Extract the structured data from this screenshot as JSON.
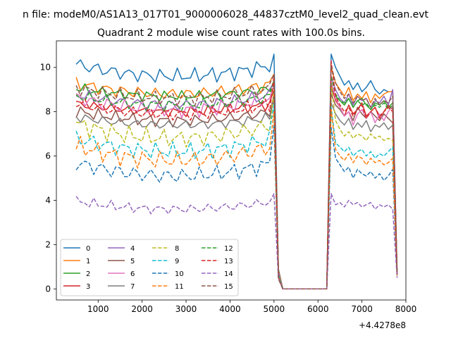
{
  "figure": {
    "suptitle": "n file: modeM0/AS1A13_017T01_9000006028_44837cztM0_level2_quad_clean.evt",
    "title": "Quadrant 2 module wise count rates with 100.0s bins.",
    "x_offset_label": "+4.4278e8"
  },
  "chart_data": {
    "type": "line",
    "title": "Quadrant 2 module wise count rates with 100.0s bins.",
    "xlabel": "",
    "ylabel": "",
    "x_offset": 442780000,
    "xlim": [
      50,
      8000
    ],
    "ylim": [
      -0.5,
      11.2
    ],
    "xticks": [
      1000,
      2000,
      3000,
      4000,
      5000,
      6000,
      7000,
      8000
    ],
    "yticks": [
      0,
      2,
      4,
      6,
      8,
      10
    ],
    "grid": false,
    "legend_position": "lower-left",
    "legend_columns": 4,
    "x_segments": [
      {
        "start": 500,
        "end": 5000,
        "step": 100
      },
      {
        "start": 5100,
        "end": 6200,
        "step": 100
      },
      {
        "start": 6300,
        "end": 7700,
        "step": 100
      }
    ],
    "series": [
      {
        "name": "0",
        "color": "#1f77b4",
        "dash": "solid",
        "base": 9.6,
        "amp": 0.9,
        "seg1_end": 10.6,
        "low": 0.0,
        "seg3": [
          10.6,
          10.0,
          9.6,
          9.2,
          9.4,
          9.0,
          9.3,
          8.9,
          9.1,
          9.4,
          9.0,
          8.8,
          9.0,
          8.9,
          8.9,
          0.7
        ]
      },
      {
        "name": "1",
        "color": "#ff7f0e",
        "dash": "solid",
        "base": 8.8,
        "amp": 0.8,
        "seg1_end": 9.7,
        "low": 0.0,
        "seg3": [
          10.0,
          9.3,
          9.0,
          8.7,
          9.1,
          8.5,
          8.8,
          8.6,
          8.9,
          8.4,
          8.8,
          8.6,
          8.8,
          8.9,
          8.9,
          0.8
        ]
      },
      {
        "name": "2",
        "color": "#2ca02c",
        "dash": "solid",
        "base": 8.7,
        "amp": 0.6,
        "seg1_end": 9.4,
        "low": 0.0,
        "seg3": [
          9.0,
          8.7,
          8.5,
          8.3,
          8.6,
          8.2,
          8.5,
          8.6,
          8.3,
          8.1,
          8.4,
          8.3,
          8.5,
          8.2,
          8.4,
          0.7
        ]
      },
      {
        "name": "3",
        "color": "#d62728",
        "dash": "solid",
        "base": 8.0,
        "amp": 0.6,
        "seg1_end": 9.0,
        "low": 0.0,
        "seg3": [
          9.2,
          8.5,
          8.2,
          7.8,
          8.3,
          7.9,
          8.1,
          8.4,
          7.8,
          8.0,
          8.2,
          7.7,
          8.0,
          8.3,
          8.1,
          0.7
        ]
      },
      {
        "name": "4",
        "color": "#9467bd",
        "dash": "solid",
        "base": 8.3,
        "amp": 0.8,
        "seg1_end": 9.3,
        "low": 0.0,
        "seg3": [
          9.6,
          9.0,
          8.6,
          8.4,
          8.8,
          8.3,
          8.7,
          8.5,
          8.6,
          8.2,
          8.5,
          8.4,
          8.7,
          8.3,
          9.0,
          0.8
        ]
      },
      {
        "name": "5",
        "color": "#8c564b",
        "dash": "solid",
        "base": 7.6,
        "amp": 0.7,
        "seg1_end": 8.8,
        "low": 0.0,
        "seg3": [
          8.8,
          8.3,
          8.1,
          7.8,
          8.0,
          7.6,
          8.2,
          7.9,
          7.7,
          8.0,
          7.8,
          7.6,
          7.9,
          7.7,
          7.5,
          0.7
        ]
      },
      {
        "name": "6",
        "color": "#e377c2",
        "dash": "solid",
        "base": 8.1,
        "amp": 0.9,
        "seg1_end": 9.2,
        "low": 0.0,
        "seg3": [
          9.4,
          8.6,
          8.2,
          7.8,
          8.0,
          7.4,
          7.9,
          8.1,
          7.7,
          8.0,
          7.5,
          7.9,
          7.6,
          8.0,
          8.3,
          0.7
        ]
      },
      {
        "name": "7",
        "color": "#7f7f7f",
        "dash": "solid",
        "base": 7.4,
        "amp": 0.6,
        "seg1_end": 8.6,
        "low": 0.0,
        "seg3": [
          8.4,
          7.9,
          7.6,
          7.4,
          7.7,
          7.2,
          7.5,
          7.3,
          7.6,
          7.1,
          7.4,
          7.3,
          7.5,
          7.2,
          7.4,
          0.6
        ]
      },
      {
        "name": "8",
        "color": "#bcbd22",
        "dash": "dashed",
        "base": 6.8,
        "amp": 1.1,
        "seg1_end": 9.0,
        "low": 0.0,
        "seg3": [
          9.3,
          7.6,
          7.2,
          6.9,
          7.1,
          6.8,
          7.0,
          6.9,
          6.7,
          7.0,
          6.8,
          6.9,
          6.7,
          6.8,
          6.7,
          0.6
        ]
      },
      {
        "name": "9",
        "color": "#17becf",
        "dash": "dashed",
        "base": 6.2,
        "amp": 1.0,
        "seg1_end": 8.3,
        "low": 0.0,
        "seg3": [
          8.2,
          6.6,
          6.4,
          6.2,
          6.4,
          6.0,
          6.2,
          6.3,
          6.0,
          6.2,
          5.9,
          6.1,
          6.0,
          6.2,
          6.4,
          0.6
        ]
      },
      {
        "name": "10",
        "color": "#1f77b4",
        "dash": "dashed",
        "base": 5.1,
        "amp": 1.0,
        "seg1_end": 7.4,
        "low": 0.0,
        "seg3": [
          7.3,
          5.9,
          5.6,
          5.3,
          5.5,
          5.0,
          5.4,
          5.2,
          5.1,
          5.3,
          5.0,
          5.2,
          4.9,
          5.1,
          5.4,
          0.6
        ]
      },
      {
        "name": "11",
        "color": "#ff7f0e",
        "dash": "dashed",
        "base": 5.8,
        "amp": 1.1,
        "seg1_end": 8.0,
        "low": 0.0,
        "seg3": [
          8.1,
          6.3,
          6.0,
          5.8,
          6.1,
          5.7,
          6.0,
          5.9,
          5.6,
          5.9,
          5.7,
          5.8,
          5.6,
          5.7,
          5.9,
          0.6
        ]
      },
      {
        "name": "12",
        "color": "#2ca02c",
        "dash": "dashed",
        "base": 8.3,
        "amp": 0.7,
        "seg1_end": 9.4,
        "low": 0.0,
        "seg3": [
          9.6,
          8.8,
          8.5,
          8.4,
          8.6,
          8.2,
          8.5,
          8.3,
          8.4,
          8.1,
          8.3,
          8.2,
          8.4,
          8.1,
          8.3,
          0.7
        ]
      },
      {
        "name": "13",
        "color": "#d62728",
        "dash": "dashed",
        "base": 7.9,
        "amp": 0.8,
        "seg1_end": 9.6,
        "low": 0.0,
        "seg3": [
          10.3,
          8.7,
          8.3,
          8.0,
          8.2,
          7.8,
          8.1,
          8.3,
          7.7,
          8.0,
          8.2,
          7.8,
          8.0,
          8.2,
          8.0,
          0.6
        ]
      },
      {
        "name": "14",
        "color": "#9467bd",
        "dash": "dashed",
        "base": 3.6,
        "amp": 0.6,
        "seg1_end": 4.3,
        "low": 0.0,
        "seg3": [
          4.3,
          3.8,
          3.9,
          3.7,
          4.0,
          3.8,
          3.9,
          3.7,
          3.8,
          3.9,
          3.6,
          3.8,
          3.7,
          3.8,
          3.6,
          0.5
        ]
      },
      {
        "name": "15",
        "color": "#8c564b",
        "dash": "dashed",
        "base": 8.6,
        "amp": 0.8,
        "seg1_end": 9.7,
        "low": 0.0,
        "seg3": [
          10.1,
          9.3,
          8.9,
          8.6,
          8.8,
          8.4,
          8.7,
          8.5,
          8.6,
          8.2,
          8.6,
          8.3,
          8.5,
          8.4,
          8.7,
          0.7
        ]
      }
    ]
  }
}
